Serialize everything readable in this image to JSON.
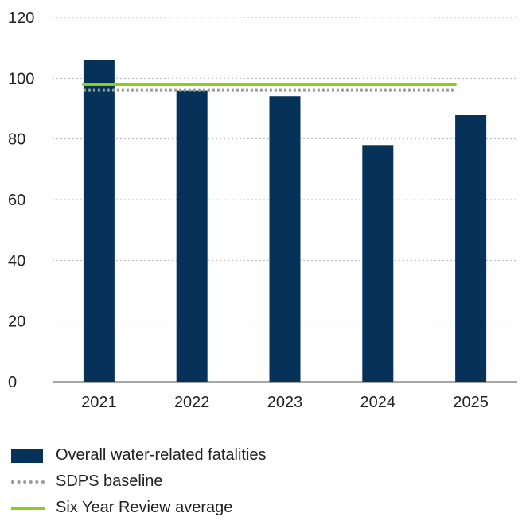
{
  "chart_data": {
    "type": "bar",
    "title": "",
    "xlabel": "",
    "ylabel": "",
    "categories": [
      "2021",
      "2022",
      "2023",
      "2024",
      "2025"
    ],
    "series": [
      {
        "name": "Overall water-related fatalities",
        "type": "bar",
        "values": [
          106,
          96,
          94,
          78,
          88
        ],
        "color": "#06325a"
      },
      {
        "name": "SDPS baseline",
        "type": "reference-line",
        "style": "dotted",
        "value": 96,
        "color": "#9a9a9a"
      },
      {
        "name": "Six Year Review average",
        "type": "reference-line",
        "style": "solid",
        "value": 98,
        "color": "#8ccd1e"
      }
    ],
    "ylim": [
      0,
      120
    ],
    "yticks": [
      0,
      20,
      40,
      60,
      80,
      100,
      120
    ],
    "grid": true,
    "legend_position": "bottom-left"
  },
  "legend": {
    "items": [
      {
        "label": "Overall water-related fatalities"
      },
      {
        "label": "SDPS baseline"
      },
      {
        "label": "Six Year Review average"
      }
    ]
  }
}
